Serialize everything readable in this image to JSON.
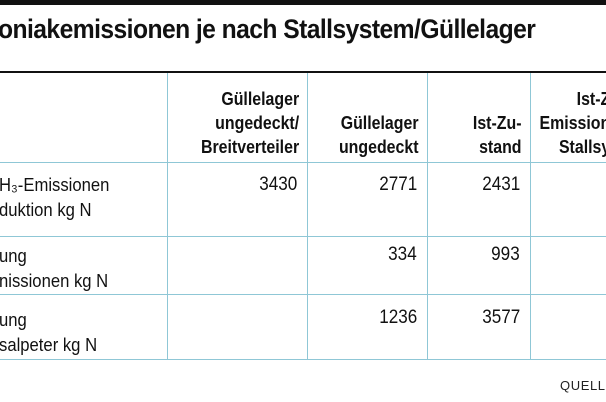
{
  "title": "oniakemissionen je nach Stallsystem/Güllelager",
  "columns": [
    {
      "lines": [
        "Güllelager",
        "ungedeckt/",
        "Breitverteiler"
      ]
    },
    {
      "lines": [
        "Güllelager",
        "ungedeckt"
      ]
    },
    {
      "lines": [
        "Ist-Zu-",
        "stand"
      ]
    },
    {
      "lines": [
        "Ist-Z",
        "Emission",
        "Stallsy"
      ]
    }
  ],
  "rows": [
    {
      "label_lines": [
        "H₃-Emissionen",
        "duktion kg N"
      ],
      "values": [
        "3430",
        "2771",
        "2431",
        ""
      ]
    },
    {
      "label_lines": [
        "ung",
        "nissionen kg N"
      ],
      "values": [
        "",
        "334",
        "993",
        ""
      ]
    },
    {
      "label_lines": [
        "ung",
        "salpeter kg N"
      ],
      "values": [
        "",
        "1236",
        "3577",
        ""
      ]
    }
  ],
  "source": "QUELL"
}
